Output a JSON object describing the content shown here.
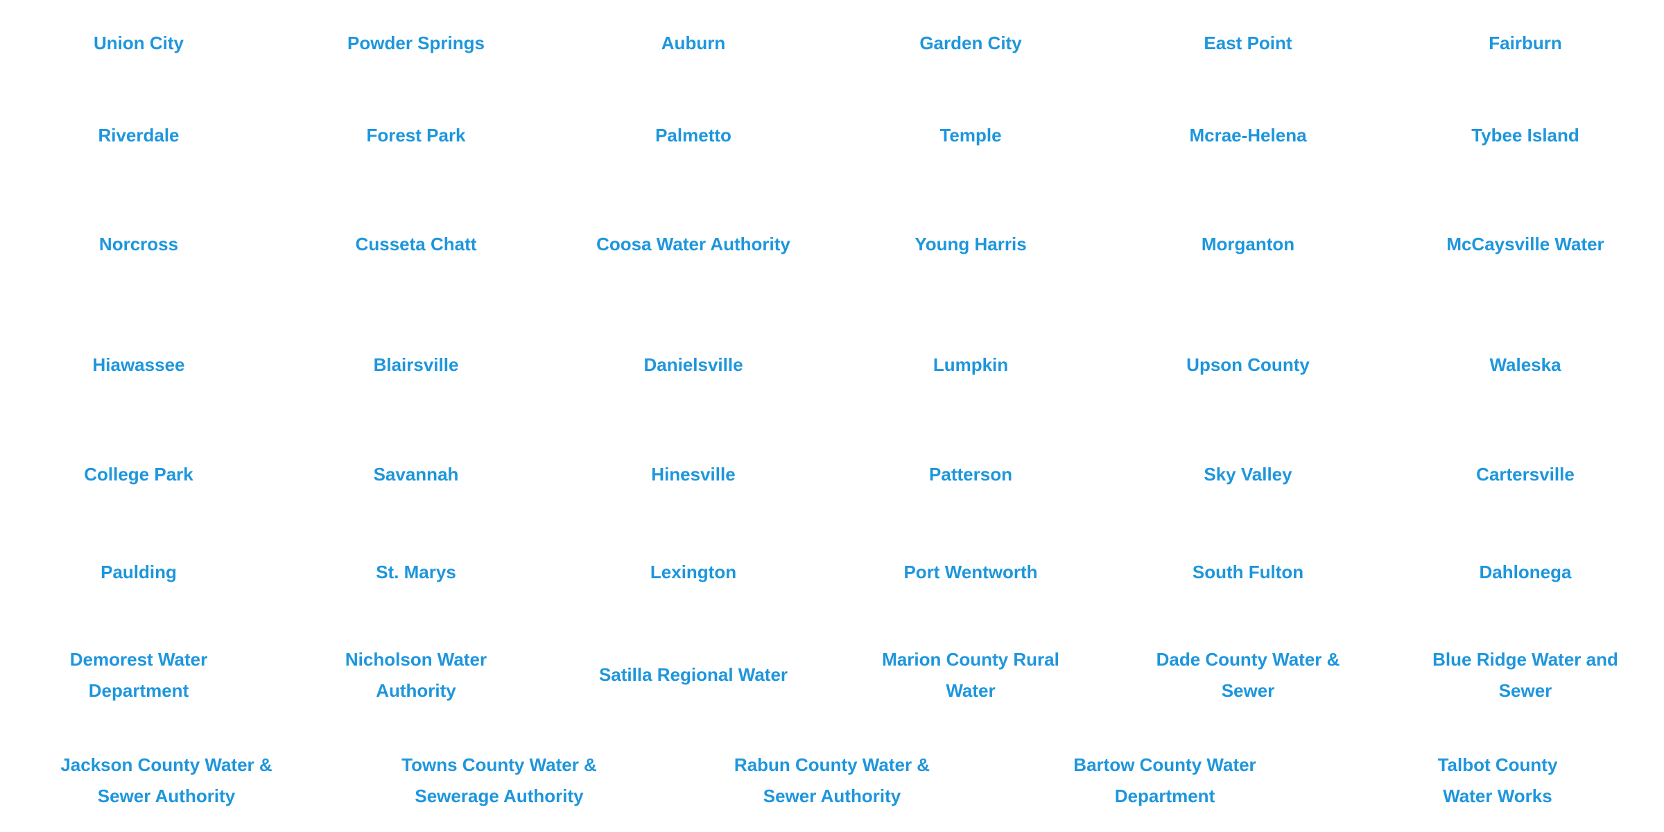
{
  "page": {
    "background_color": "#ffffff",
    "link_color": "#1e96dc"
  },
  "link_grid": {
    "rows": [
      {
        "items": [
          "Union City",
          "Powder Springs",
          "Auburn",
          "Garden City",
          "East Point",
          "Fairburn"
        ]
      },
      {
        "items": [
          "Riverdale",
          "Forest Park",
          "Palmetto",
          "Temple",
          "Mcrae-Helena",
          "Tybee Island"
        ]
      },
      {
        "items": [
          "Norcross",
          "Cusseta Chatt",
          "Coosa Water Authority",
          "Young Harris",
          "Morganton",
          "McCaysville Water"
        ]
      },
      {
        "items": [
          "Hiawassee",
          "Blairsville",
          "Danielsville",
          "Lumpkin",
          "Upson County",
          "Waleska"
        ]
      },
      {
        "items": [
          "College Park",
          "Savannah",
          "Hinesville",
          "Patterson",
          "Sky Valley",
          "Cartersville"
        ]
      },
      {
        "items": [
          "Paulding",
          "St. Marys",
          "Lexington",
          "Port Wentworth",
          "South Fulton",
          "Dahlonega"
        ]
      },
      {
        "items": [
          "Demorest Water\nDepartment",
          "Nicholson Water\nAuthority",
          "Satilla Regional Water",
          "Marion County Rural\nWater",
          "Dade County Water &\nSewer",
          "Blue Ridge Water and\nSewer"
        ]
      },
      {
        "items": [
          "Jackson County Water &\nSewer Authority",
          "Towns County Water &\nSewerage Authority",
          "Rabun County Water &\nSewer Authority",
          "Bartow County Water\nDepartment",
          "Talbot County\nWater Works"
        ]
      }
    ]
  }
}
